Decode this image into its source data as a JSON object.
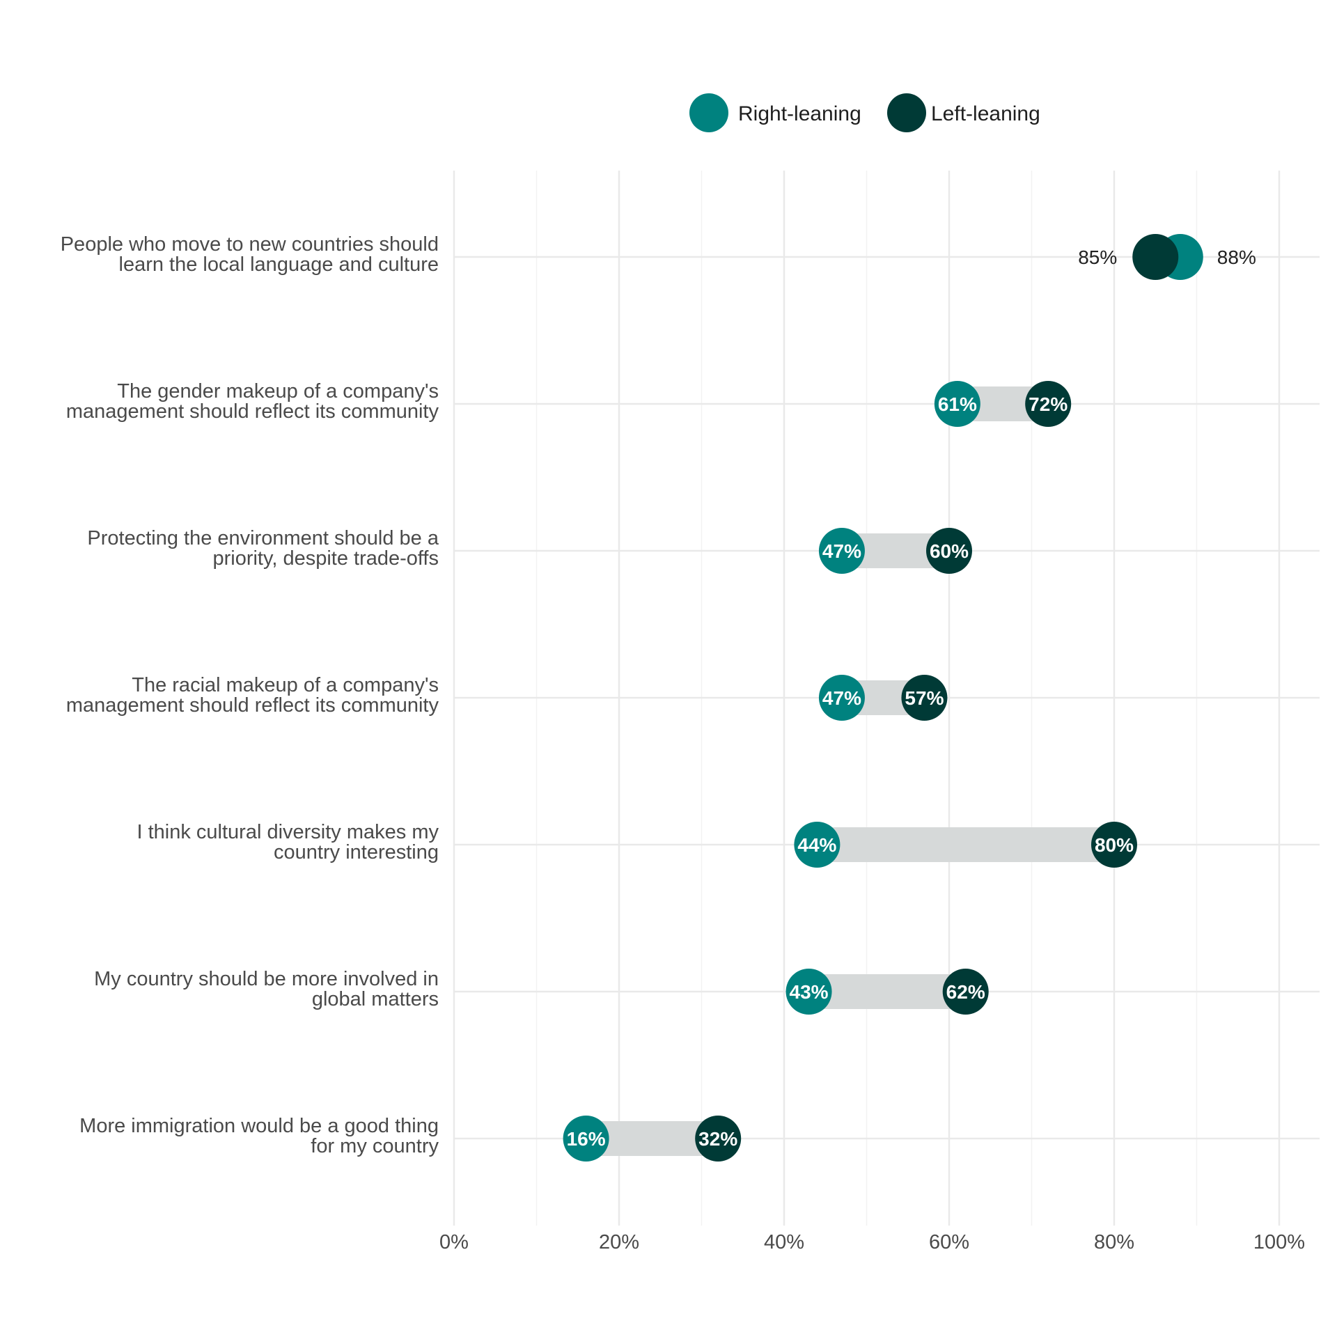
{
  "chart_data": {
    "type": "dumbbell",
    "title": "",
    "xlabel": "",
    "ylabel": "",
    "xlim": [
      0,
      100
    ],
    "x_ticks": [
      "0%",
      "20%",
      "40%",
      "60%",
      "80%",
      "100%"
    ],
    "legend": {
      "placement": "top"
    },
    "series": [
      {
        "name": "Right-leaning",
        "color": "#00827f"
      },
      {
        "name": "Left-leaning",
        "color": "#003a36"
      }
    ],
    "categories": [
      {
        "label_lines": [
          "People who move to new countries should",
          "learn the local language and culture"
        ],
        "right": 88,
        "left": 85,
        "right_label": "88%",
        "left_label": "85%"
      },
      {
        "label_lines": [
          "The gender makeup of a company's",
          "management should reflect its community"
        ],
        "right": 61,
        "left": 72,
        "right_label": "61%",
        "left_label": "72%"
      },
      {
        "label_lines": [
          "Protecting the environment should be a",
          "priority, despite trade-offs"
        ],
        "right": 47,
        "left": 60,
        "right_label": "47%",
        "left_label": "60%"
      },
      {
        "label_lines": [
          "The racial makeup of a company's",
          "management should reflect its community"
        ],
        "right": 47,
        "left": 57,
        "right_label": "47%",
        "left_label": "57%"
      },
      {
        "label_lines": [
          "I think cultural diversity makes my",
          "country interesting"
        ],
        "right": 44,
        "left": 80,
        "right_label": "44%",
        "left_label": "80%"
      },
      {
        "label_lines": [
          "My country should be more involved in",
          "global matters"
        ],
        "right": 43,
        "left": 62,
        "right_label": "43%",
        "left_label": "62%"
      },
      {
        "label_lines": [
          "More immigration would be a good thing",
          "for my country"
        ],
        "right": 16,
        "left": 32,
        "right_label": "16%",
        "left_label": "32%"
      }
    ],
    "colors": {
      "bar": "#d6d9d9",
      "grid": "#e9e9e9"
    }
  }
}
